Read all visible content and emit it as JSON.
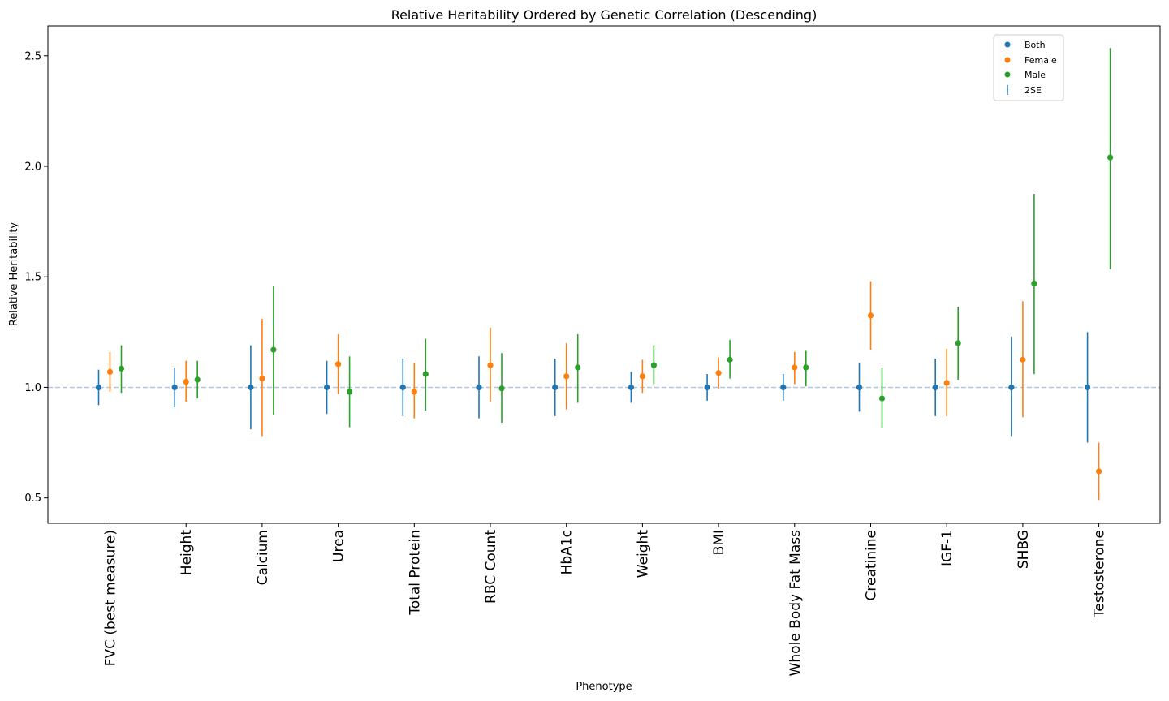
{
  "chart_data": {
    "type": "scatter",
    "title": "Relative Heritability Ordered by Genetic Correlation (Descending)",
    "xlabel": "Phenotype",
    "ylabel": "Relative Heritability",
    "ylim": [
      0.385,
      2.635
    ],
    "yticks": [
      0.5,
      1.0,
      1.5,
      2.0,
      2.5
    ],
    "ytick_labels": [
      "0.5",
      "1.0",
      "1.5",
      "2.0",
      "2.5"
    ],
    "reference_line": 1.0,
    "reference_color": "#aec7e8",
    "grid": false,
    "legend_position": "top-right",
    "legend": [
      "Both",
      "Female",
      "Male",
      "2SE"
    ],
    "errorbar_legend_color": "#1f77b4",
    "categories": [
      "FVC (best measure)",
      "Height",
      "Calcium",
      "Urea",
      "Total Protein",
      "RBC Count",
      "HbA1c",
      "Weight",
      "BMI",
      "Whole Body Fat Mass",
      "Creatinine",
      "IGF-1",
      "SHBG",
      "Testosterone"
    ],
    "series": [
      {
        "name": "Both",
        "color": "#1f77b4",
        "values": [
          1.0,
          1.0,
          1.0,
          1.0,
          1.0,
          1.0,
          1.0,
          1.0,
          1.0,
          1.0,
          1.0,
          1.0,
          1.0,
          1.0
        ],
        "err_low": [
          0.92,
          0.91,
          0.81,
          0.88,
          0.87,
          0.86,
          0.87,
          0.93,
          0.94,
          0.94,
          0.89,
          0.87,
          0.78,
          0.75
        ],
        "err_high": [
          1.08,
          1.09,
          1.19,
          1.12,
          1.13,
          1.14,
          1.13,
          1.07,
          1.06,
          1.06,
          1.11,
          1.13,
          1.23,
          1.25
        ]
      },
      {
        "name": "Female",
        "color": "#ff7f0e",
        "values": [
          1.07,
          1.025,
          1.04,
          1.105,
          0.98,
          1.1,
          1.05,
          1.05,
          1.065,
          1.09,
          1.325,
          1.02,
          1.125,
          0.62
        ],
        "err_low": [
          0.98,
          0.935,
          0.78,
          0.97,
          0.86,
          0.935,
          0.9,
          0.975,
          0.995,
          1.015,
          1.17,
          0.87,
          0.865,
          0.49
        ],
        "err_high": [
          1.16,
          1.12,
          1.31,
          1.24,
          1.11,
          1.27,
          1.2,
          1.125,
          1.135,
          1.16,
          1.48,
          1.175,
          1.39,
          0.75
        ]
      },
      {
        "name": "Male",
        "color": "#2ca02c",
        "values": [
          1.085,
          1.035,
          1.17,
          0.98,
          1.06,
          0.995,
          1.09,
          1.1,
          1.125,
          1.09,
          0.95,
          1.2,
          1.47,
          2.04
        ],
        "err_low": [
          0.975,
          0.95,
          0.875,
          0.82,
          0.895,
          0.84,
          0.93,
          1.015,
          1.04,
          1.005,
          0.815,
          1.035,
          1.06,
          1.535
        ],
        "err_high": [
          1.19,
          1.12,
          1.46,
          1.14,
          1.22,
          1.155,
          1.24,
          1.19,
          1.215,
          1.165,
          1.09,
          1.365,
          1.875,
          2.535
        ]
      }
    ]
  }
}
